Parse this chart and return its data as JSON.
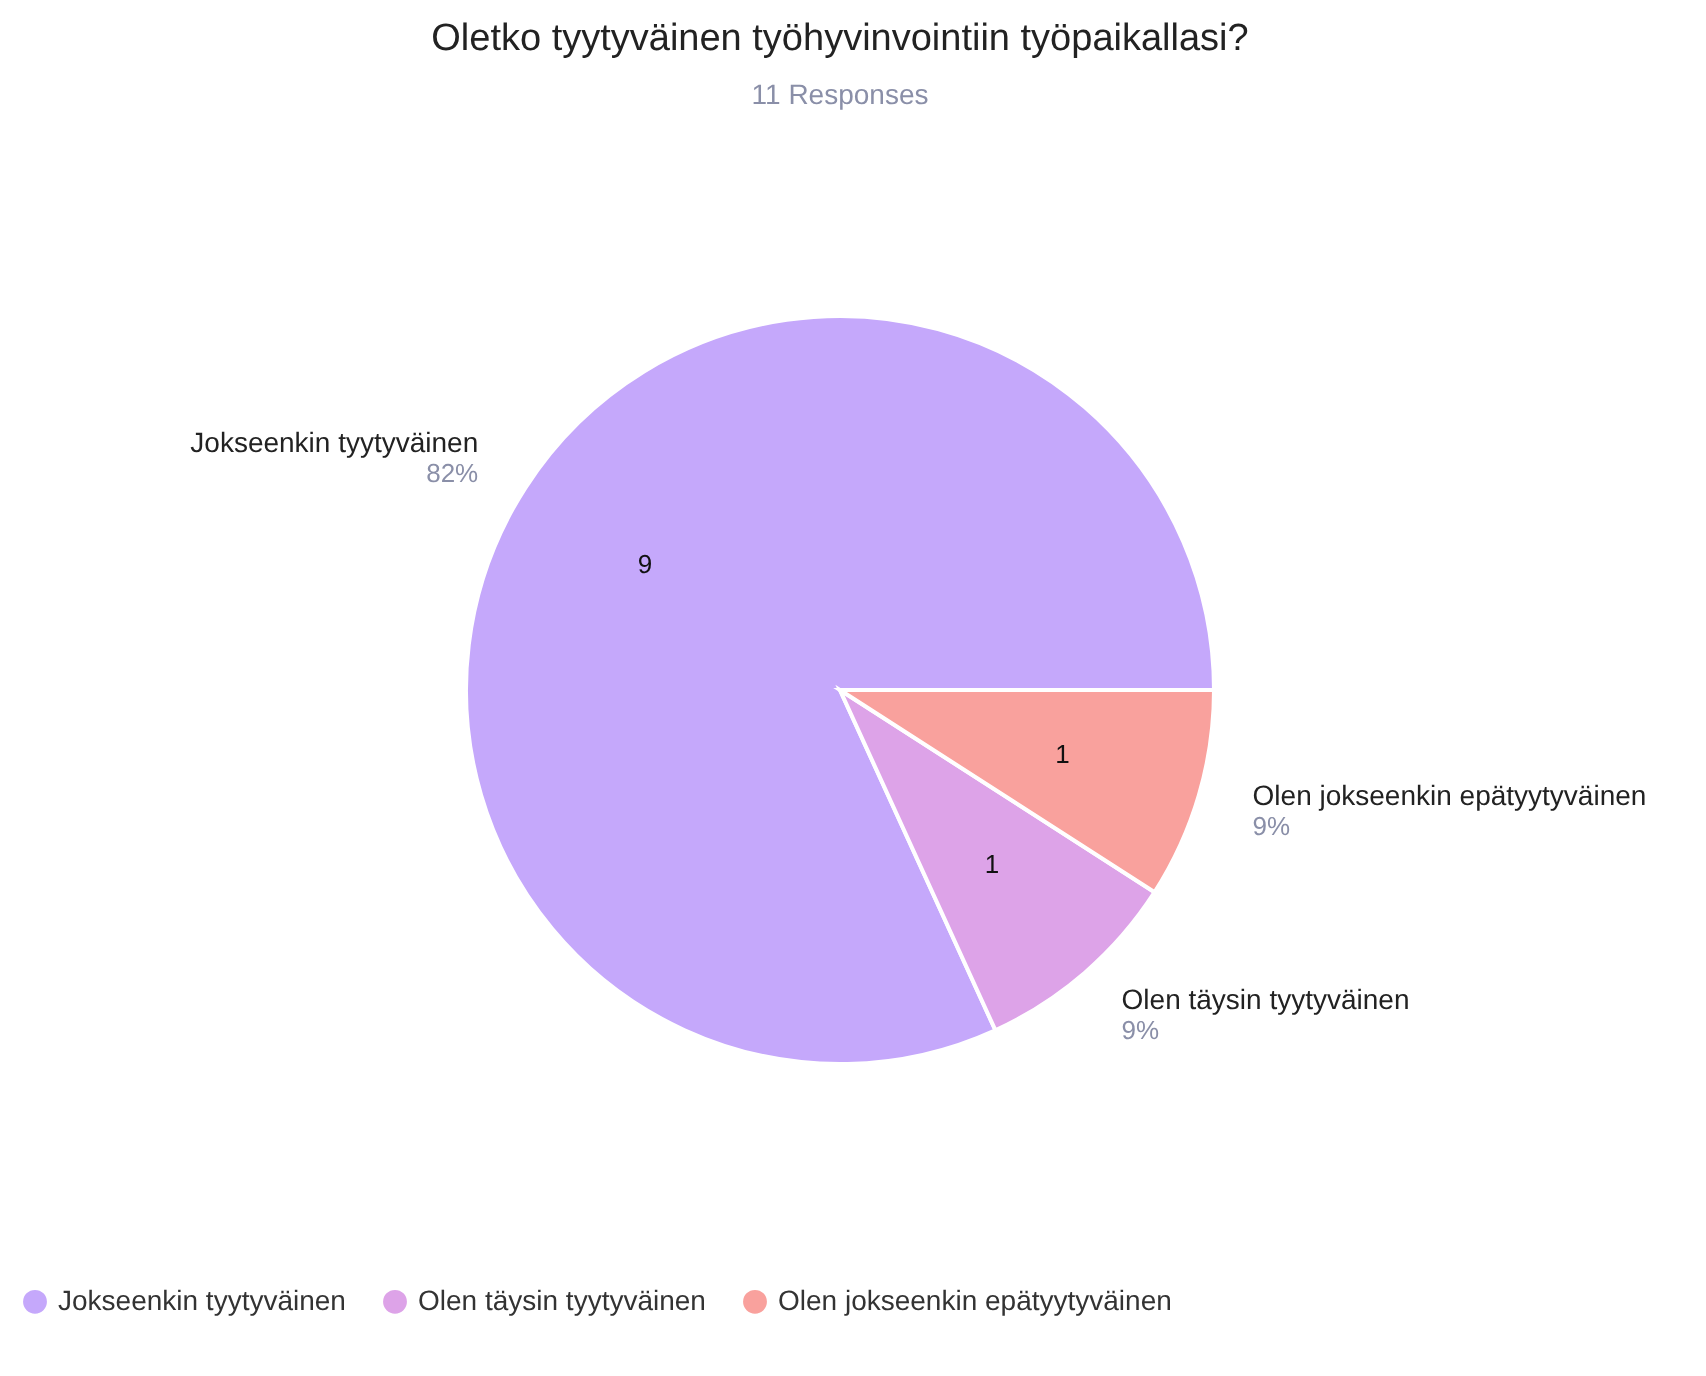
{
  "chart_data": {
    "type": "pie",
    "title": "Oletko tyytyväinen työhyvinvointiin työpaikallasi?",
    "subtitle": "11 Responses",
    "categories": [
      "Jokseenkin tyytyväinen",
      "Olen täysin tyytyväinen",
      "Olen jokseenkin  epätyytyväinen"
    ],
    "values": [
      9,
      1,
      1
    ],
    "colors": [
      "#c5a8fb",
      "#dda3e8",
      "#f9a19d"
    ],
    "annotations": [
      {
        "text": "82%",
        "x": "Jokseenkin tyytyväinen"
      },
      {
        "text": "9%",
        "x": "Olen täysin tyytyväinen"
      },
      {
        "text": "9%",
        "x": "Olen jokseenkin  epätyytyväinen"
      }
    ],
    "data_labels": true,
    "legend": "bottom"
  }
}
